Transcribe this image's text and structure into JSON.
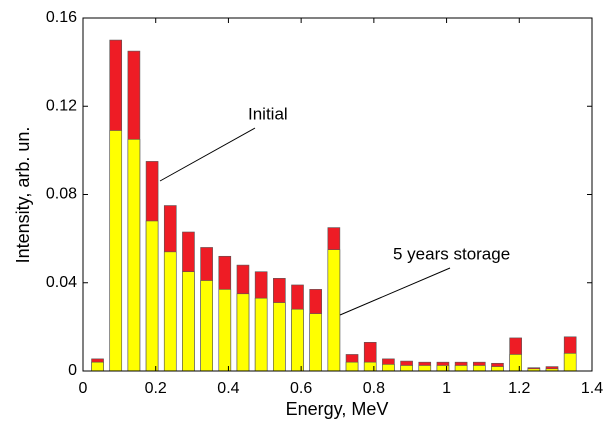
{
  "chart_data": {
    "type": "bar",
    "xlabel": "Energy, MeV",
    "ylabel": "Intensity, arb. un.",
    "x": [
      0.04,
      0.09,
      0.14,
      0.19,
      0.24,
      0.29,
      0.34,
      0.39,
      0.44,
      0.49,
      0.54,
      0.59,
      0.64,
      0.69,
      0.74,
      0.79,
      0.84,
      0.89,
      0.94,
      0.99,
      1.04,
      1.09,
      1.14,
      1.19,
      1.24,
      1.29,
      1.34
    ],
    "series": [
      {
        "name": "Initial",
        "color": "#ee1c25",
        "values": [
          0.0055,
          0.15,
          0.145,
          0.095,
          0.075,
          0.063,
          0.056,
          0.052,
          0.048,
          0.045,
          0.042,
          0.039,
          0.037,
          0.065,
          0.0075,
          0.013,
          0.0055,
          0.0045,
          0.004,
          0.004,
          0.004,
          0.004,
          0.0035,
          0.015,
          0.0015,
          0.002,
          0.0155
        ]
      },
      {
        "name": "5 years storage",
        "color": "#ffff00",
        "values": [
          0.004,
          0.109,
          0.105,
          0.068,
          0.054,
          0.045,
          0.041,
          0.037,
          0.035,
          0.033,
          0.031,
          0.028,
          0.026,
          0.055,
          0.004,
          0.004,
          0.003,
          0.0025,
          0.0025,
          0.0025,
          0.0025,
          0.0025,
          0.002,
          0.0075,
          0.001,
          0.001,
          0.008
        ]
      }
    ],
    "xlim": [
      0,
      1.4
    ],
    "xticks": [
      0,
      0.2,
      0.4,
      0.6,
      0.8,
      1,
      1.2,
      1.4
    ],
    "ylim": [
      0,
      0.16
    ],
    "yticks": [
      0,
      0.04,
      0.08,
      0.12,
      0.16
    ]
  }
}
